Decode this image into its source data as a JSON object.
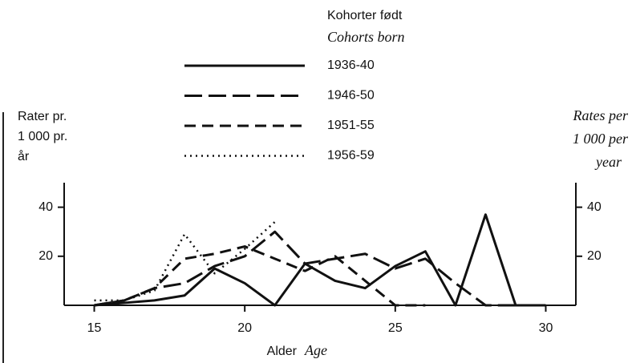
{
  "chart_data": {
    "type": "line",
    "legend_title": [
      "Kohorter født",
      "Cohorts born"
    ],
    "y_label": [
      "Rater pr.",
      "1 000 pr.",
      "år"
    ],
    "y2_label": [
      "Rates per",
      "1 000 per",
      "year"
    ],
    "x_label": [
      "Alder",
      "Age"
    ],
    "x": [
      15,
      16,
      17,
      18,
      19,
      20,
      21,
      22,
      23,
      24,
      25,
      26,
      27,
      28,
      29,
      30
    ],
    "series": [
      {
        "name": "1936-40",
        "color": "#111111",
        "linestyle": "solid",
        "values": [
          0,
          1,
          2,
          4,
          15,
          9,
          0,
          17,
          10,
          7,
          16,
          22,
          0,
          37,
          0,
          0
        ]
      },
      {
        "name": "1946-50",
        "color": "#111111",
        "linestyle": "long-dash",
        "values": [
          0,
          2,
          7,
          9,
          16,
          20,
          30,
          17,
          19,
          21,
          15,
          19,
          9,
          0,
          0,
          0
        ]
      },
      {
        "name": "1951-55",
        "color": "#111111",
        "linestyle": "dashed",
        "values": [
          0,
          2,
          7,
          19,
          21,
          24,
          19,
          14,
          20,
          10,
          0,
          0,
          null,
          null,
          null,
          null
        ]
      },
      {
        "name": "1956-59",
        "color": "#111111",
        "linestyle": "dotted",
        "values": [
          2,
          2,
          6,
          29,
          13,
          23,
          34,
          null,
          null,
          null,
          null,
          null,
          null,
          null,
          null,
          null
        ]
      }
    ],
    "xlim": [
      14,
      31
    ],
    "xticks": [
      15,
      20,
      25,
      30
    ],
    "ylim": [
      0,
      50
    ],
    "yticks": [
      20,
      40
    ]
  }
}
